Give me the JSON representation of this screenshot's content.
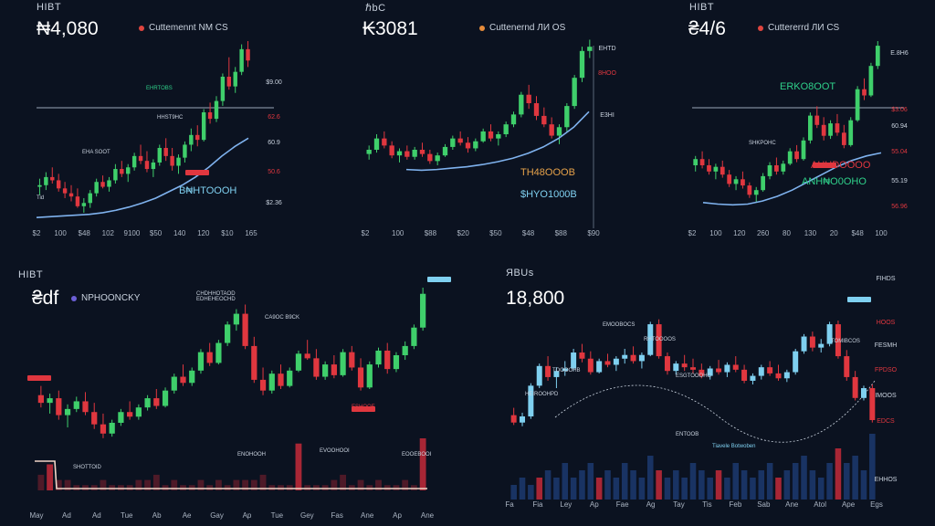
{
  "panels": [
    {
      "title": "HIBT",
      "price": "₦4,080",
      "legend": "Cuttemennt NM CS",
      "legend_color": "#e0453f"
    },
    {
      "title": "ℏbC",
      "price": "₭3081",
      "legend": "Cuttenernd ЛИ OS",
      "legend_color": "#e68b3a"
    },
    {
      "title": "HIBT",
      "price": "₴4/6",
      "legend": "Cuttererrd ЛИ CS",
      "legend_color": "#e0453f"
    },
    {
      "title": "HIBT",
      "price": "₴df",
      "legend": "NPHOONCKY",
      "legend_color": "#6b5fd6"
    },
    {
      "title": "ЯBUs",
      "price": "18,800",
      "legend": "",
      "legend_color": ""
    }
  ],
  "colors": {
    "up": "#3fcf6b",
    "down": "#e0373f",
    "ma": "#7fb2ee",
    "bg": "#0b1220",
    "blue_up": "#7fd0f0",
    "blue_bar": "#1c3a70",
    "red_bar": "#c42a3a"
  },
  "chart_data": [
    {
      "type": "candlestick",
      "title": "HIBT",
      "y_labels": [
        "$9.00",
        "62.6",
        "60.9",
        "50.6",
        "$2.36"
      ],
      "x_labels": [
        "$2",
        "100",
        "$48",
        "102",
        "9100",
        "$50",
        "140",
        "120",
        "$10",
        "165"
      ],
      "annotations": [
        "EHRTOBS",
        "HHST9HC",
        "EHA SOOT",
        "B₦HTOOOH",
        "Tid"
      ],
      "candles": [
        [
          1,
          1.5,
          0.5,
          1.1
        ],
        [
          1.1,
          1.9,
          0.8,
          1.6
        ],
        [
          1.6,
          2.2,
          1.2,
          1.4
        ],
        [
          1.4,
          1.8,
          0.7,
          0.9
        ],
        [
          0.9,
          1.3,
          0.3,
          0.6
        ],
        [
          0.6,
          1.1,
          0.1,
          0.4
        ],
        [
          0.4,
          0.9,
          -0.3,
          -0.2
        ],
        [
          -0.2,
          0.3,
          -0.6,
          0
        ],
        [
          0,
          0.8,
          -0.3,
          0.6
        ],
        [
          0.6,
          1.5,
          0.4,
          1.3
        ],
        [
          1.3,
          1.7,
          0.9,
          1
        ],
        [
          1,
          1.6,
          0.7,
          1.4
        ],
        [
          1.4,
          2.4,
          1.2,
          2.1
        ],
        [
          2.1,
          2.6,
          1.6,
          1.8
        ],
        [
          1.8,
          2.4,
          1.3,
          2.2
        ],
        [
          2.2,
          3.1,
          2,
          2.9
        ],
        [
          2.9,
          3.6,
          2.4,
          2.6
        ],
        [
          2.6,
          3.2,
          1.9,
          2.1
        ],
        [
          2.1,
          2.7,
          1.6,
          2.5
        ],
        [
          2.5,
          3.6,
          2.3,
          3.4
        ],
        [
          3.4,
          4,
          2.6,
          2.9
        ],
        [
          2.9,
          3.4,
          2,
          2.3
        ],
        [
          2.3,
          3,
          1.8,
          2.8
        ],
        [
          2.8,
          3.8,
          2.5,
          3.6
        ],
        [
          3.6,
          4.6,
          3.2,
          4.2
        ],
        [
          4.2,
          4.8,
          3.5,
          3.9
        ],
        [
          3.9,
          5.8,
          3.8,
          5.6
        ],
        [
          5.6,
          6.2,
          4.9,
          5.2
        ],
        [
          5.2,
          6.6,
          5,
          6.3
        ],
        [
          6.3,
          8,
          6,
          7.8
        ],
        [
          7.8,
          9,
          7,
          7.2
        ],
        [
          7.2,
          8.4,
          6.8,
          8.1
        ],
        [
          8.1,
          9.8,
          7.9,
          9.5
        ],
        [
          9.5,
          10,
          8.4,
          8.8
        ]
      ],
      "ma": [
        -0.9,
        -0.85,
        -0.8,
        -0.75,
        -0.7,
        -0.6,
        -0.45,
        -0.25,
        0,
        0.3,
        0.7,
        1.1,
        1.6,
        2.2,
        2.9,
        3.5,
        4
      ]
    },
    {
      "type": "candlestick",
      "title": "ℏbC",
      "y_labels": [
        "EHTD",
        "8HOO",
        "E3HI"
      ],
      "x_labels": [
        "$2",
        "100",
        "$88",
        "$20",
        "$50",
        "$48",
        "$88",
        "$90"
      ],
      "annotations": [
        "TH48OOOB",
        "$HYO1000B"
      ],
      "candles": [
        [
          2,
          2.6,
          1.6,
          2.3
        ],
        [
          2.3,
          3.4,
          2.1,
          3.1
        ],
        [
          3.1,
          3.6,
          2.4,
          2.6
        ],
        [
          2.6,
          2.9,
          1.7,
          1.9
        ],
        [
          1.9,
          2.4,
          1.4,
          2.2
        ],
        [
          2.2,
          2.6,
          1.6,
          1.8
        ],
        [
          1.8,
          2.5,
          1.6,
          2.3
        ],
        [
          2.3,
          2.8,
          1.8,
          2
        ],
        [
          2,
          2.3,
          1.3,
          1.5
        ],
        [
          1.5,
          2.1,
          1.2,
          1.9
        ],
        [
          1.9,
          2.7,
          1.8,
          2.5
        ],
        [
          2.5,
          3.3,
          2.3,
          3.1
        ],
        [
          3.1,
          3.6,
          2.6,
          2.8
        ],
        [
          2.8,
          3.2,
          2.1,
          2.4
        ],
        [
          2.4,
          3.1,
          2.2,
          2.9
        ],
        [
          2.9,
          3.8,
          2.8,
          3.6
        ],
        [
          3.6,
          4.1,
          2.9,
          3.1
        ],
        [
          3.1,
          3.6,
          2.6,
          3.4
        ],
        [
          3.4,
          4.3,
          3.2,
          4.1
        ],
        [
          4.1,
          5,
          3.9,
          4.8
        ],
        [
          4.8,
          6.4,
          4.6,
          6.2
        ],
        [
          6.2,
          6.9,
          5.2,
          5.6
        ],
        [
          5.6,
          6.1,
          4.4,
          4.7
        ],
        [
          4.7,
          5.3,
          3.9,
          4.1
        ],
        [
          4.1,
          4.6,
          3.1,
          3.3
        ],
        [
          3.3,
          4.1,
          2.7,
          3.9
        ],
        [
          3.9,
          5.6,
          3.6,
          5.4
        ],
        [
          5.4,
          7.6,
          5.2,
          7.4
        ],
        [
          7.4,
          9.6,
          7.1,
          9.3
        ],
        [
          9.3,
          10.1,
          8.8,
          9.6
        ]
      ],
      "ma": [
        0.9,
        0.85,
        0.9,
        1,
        1.1,
        1.25,
        1.45,
        1.7,
        2.05,
        2.5,
        3.1,
        3.9,
        5
      ]
    },
    {
      "type": "candlestick",
      "title": "HIBT",
      "y_labels": [
        "E.8H6",
        "$3.06",
        "60.94",
        "55.04",
        "55.19",
        "56.96"
      ],
      "x_labels": [
        "$2",
        "100",
        "120",
        "260",
        "80",
        "130",
        "20",
        "$48",
        "100"
      ],
      "annotations": [
        "ERKO8OOT",
        "SHKPOHC",
        "AHHDOOOO",
        "ANH₦O0OHO"
      ],
      "candles": [
        [
          2,
          2.6,
          1.6,
          2.4
        ],
        [
          2.4,
          2.9,
          1.8,
          2
        ],
        [
          2,
          2.4,
          1.4,
          1.6
        ],
        [
          1.6,
          2.1,
          1.1,
          1.9
        ],
        [
          1.9,
          2.3,
          1.2,
          1.4
        ],
        [
          1.4,
          1.7,
          0.6,
          0.8
        ],
        [
          0.8,
          1.3,
          0.4,
          1.1
        ],
        [
          1.1,
          1.6,
          0.5,
          0.7
        ],
        [
          0.7,
          0.9,
          -0.1,
          0.1
        ],
        [
          0.1,
          0.6,
          -0.4,
          0.4
        ],
        [
          0.4,
          1.5,
          0.3,
          1.3
        ],
        [
          1.3,
          2.2,
          1.1,
          2
        ],
        [
          2,
          2.5,
          1.4,
          1.6
        ],
        [
          1.6,
          2.3,
          1.4,
          2.1
        ],
        [
          2.1,
          3.1,
          2,
          2.9
        ],
        [
          2.9,
          3.3,
          2.2,
          2.4
        ],
        [
          2.4,
          3.8,
          2.3,
          3.6
        ],
        [
          3.6,
          5.4,
          3.4,
          5.2
        ],
        [
          5.2,
          5.8,
          4.4,
          4.6
        ],
        [
          4.6,
          5.1,
          3.6,
          3.9
        ],
        [
          3.9,
          4.9,
          3.7,
          4.7
        ],
        [
          4.7,
          5.3,
          3.9,
          4.1
        ],
        [
          4.1,
          4.6,
          3.1,
          3.3
        ],
        [
          3.3,
          5.1,
          3.2,
          4.9
        ],
        [
          4.9,
          7.1,
          4.8,
          6.9
        ],
        [
          6.9,
          7.6,
          6.2,
          6.5
        ],
        [
          6.5,
          8.6,
          6.4,
          8.4
        ],
        [
          8.4,
          10,
          8.2,
          9.7
        ]
      ],
      "ma": [
        -0.4,
        -0.5,
        -0.55,
        -0.5,
        -0.3,
        0,
        0.4,
        0.9,
        1.4,
        1.9,
        2.3,
        2.6,
        2.8
      ]
    },
    {
      "type": "candlestick_volume",
      "title": "HIBT",
      "y_labels": [],
      "x_labels": [
        "May",
        "Ad",
        "Ad",
        "Tue",
        "Ab",
        "Ae",
        "Gay",
        "Ap",
        "Tue",
        "Gey",
        "Fas",
        "Ane",
        "Ap",
        "Ane"
      ],
      "annotations": [
        "CA9OC B9CK",
        "EDHEHEOCHD",
        "CHDHHOTAOD",
        "ESHOOE",
        "ENOHOOH",
        "EVOOHOOI",
        "EOOEBOOI",
        "SHOTTOID"
      ],
      "candles": [
        [
          3,
          3.6,
          2.2,
          2.5
        ],
        [
          2.5,
          3.1,
          1.8,
          2.8
        ],
        [
          2.8,
          3.3,
          1.4,
          1.7
        ],
        [
          1.7,
          2.4,
          0.9,
          2.1
        ],
        [
          2.1,
          2.9,
          1.9,
          2.6
        ],
        [
          2.6,
          3.2,
          1.7,
          1.9
        ],
        [
          1.9,
          2.5,
          0.8,
          1.1
        ],
        [
          1.1,
          1.8,
          0.2,
          0.5
        ],
        [
          0.5,
          1.4,
          0.3,
          1.2
        ],
        [
          1.2,
          2.1,
          1,
          1.9
        ],
        [
          1.9,
          2.6,
          1.4,
          1.6
        ],
        [
          1.6,
          2.4,
          1.4,
          2.2
        ],
        [
          2.2,
          3,
          2,
          2.8
        ],
        [
          2.8,
          3.4,
          2.1,
          2.3
        ],
        [
          2.3,
          3.5,
          2.2,
          3.3
        ],
        [
          3.3,
          4.4,
          3.1,
          4.2
        ],
        [
          4.2,
          5,
          3.6,
          3.8
        ],
        [
          3.8,
          4.8,
          3.6,
          4.6
        ],
        [
          4.6,
          6,
          4.4,
          5.8
        ],
        [
          5.8,
          6.4,
          4.9,
          5.1
        ],
        [
          5.1,
          6.6,
          5,
          6.4
        ],
        [
          6.4,
          7.8,
          6.2,
          7.6
        ],
        [
          7.6,
          8.6,
          7.2,
          8.3
        ],
        [
          8.3,
          8.9,
          6,
          6.2
        ],
        [
          6.2,
          6.8,
          3.8,
          4
        ],
        [
          4,
          4.8,
          3,
          3.3
        ],
        [
          3.3,
          4.6,
          3.1,
          4.4
        ],
        [
          4.4,
          5,
          3.4,
          3.6
        ],
        [
          3.6,
          4.8,
          3.5,
          4.6
        ],
        [
          4.6,
          5.9,
          4.5,
          5.7
        ],
        [
          5.7,
          6.6,
          5.3,
          5.4
        ],
        [
          5.4,
          6,
          4,
          4.2
        ],
        [
          4.2,
          5.2,
          4,
          5
        ],
        [
          5,
          5.6,
          4.1,
          4.3
        ],
        [
          4.3,
          6,
          4.2,
          5.8
        ],
        [
          5.8,
          6.2,
          4.6,
          4.8
        ],
        [
          4.8,
          5.4,
          3.3,
          3.5
        ],
        [
          3.5,
          5.2,
          3.4,
          5
        ],
        [
          5,
          6.1,
          4.8,
          5.9
        ],
        [
          5.9,
          6.4,
          4.4,
          4.7
        ],
        [
          4.7,
          5.8,
          4.5,
          5.6
        ],
        [
          5.6,
          6.5,
          5.3,
          6.2
        ],
        [
          6.2,
          7.6,
          6,
          7.4
        ],
        [
          7.4,
          10,
          7.2,
          9.6
        ]
      ],
      "volume": [
        3,
        5,
        2,
        2,
        1,
        1,
        1,
        2,
        1,
        1,
        1,
        2,
        2,
        3,
        1,
        2,
        1,
        1,
        2,
        1,
        2,
        1,
        2,
        2,
        2,
        3,
        1,
        1,
        1,
        9,
        1,
        1,
        1,
        2,
        3,
        1,
        2,
        1,
        2,
        1,
        1,
        2,
        1,
        10
      ]
    },
    {
      "type": "candlestick_volume",
      "title": "ЯBUs",
      "y_labels": [
        "FIHDS",
        "HOOS",
        "FESMH",
        "FPDSO",
        "IMOOS",
        "EDCS",
        "EHHOS"
      ],
      "x_labels": [
        "Fa",
        "Fia",
        "Ley",
        "Ap",
        "Fae",
        "Ag",
        "Tay",
        "Tis",
        "Feb",
        "Sab",
        "Ane",
        "Atol",
        "Ape",
        "Egs"
      ],
      "annotations": [
        "EMOOBOCS",
        "RHTOOOOS",
        "TOOOOHB",
        "HEIROOHPD",
        "ESGTOOOHC",
        "ENTOOB",
        "TOMIBCOS",
        "Tiavele Botwoben"
      ],
      "candles": [
        [
          2,
          2.6,
          1.2,
          1.4
        ],
        [
          1.4,
          2.2,
          1.1,
          1.9
        ],
        [
          1.9,
          4.6,
          1.7,
          4.4
        ],
        [
          4.4,
          6.2,
          4.2,
          6
        ],
        [
          6,
          6.8,
          4.8,
          5.1
        ],
        [
          5.1,
          5.9,
          4.2,
          5.6
        ],
        [
          5.6,
          6.4,
          5.2,
          5.8
        ],
        [
          5.8,
          7.4,
          5.6,
          7.1
        ],
        [
          7.1,
          7.8,
          6.3,
          6.6
        ],
        [
          6.6,
          7.2,
          5.3,
          5.5
        ],
        [
          5.5,
          6.6,
          5.4,
          6.4
        ],
        [
          6.4,
          7,
          5.9,
          6.1
        ],
        [
          6.1,
          6.8,
          5.6,
          6.6
        ],
        [
          6.6,
          7.4,
          6.2,
          6.9
        ],
        [
          6.9,
          7.6,
          6.2,
          6.4
        ],
        [
          6.4,
          7.1,
          5.8,
          6.9
        ],
        [
          6.9,
          9.6,
          6.8,
          9.4
        ],
        [
          9.4,
          9.8,
          6.6,
          6.8
        ],
        [
          6.8,
          7.1,
          5.3,
          5.6
        ],
        [
          5.6,
          6.4,
          5.3,
          6.2
        ],
        [
          6.2,
          6.9,
          5.6,
          5.9
        ],
        [
          5.9,
          6.6,
          5.4,
          5.7
        ],
        [
          5.7,
          6.2,
          5,
          5.2
        ],
        [
          5.2,
          6,
          4.9,
          5.8
        ],
        [
          5.8,
          6.5,
          5.3,
          5.5
        ],
        [
          5.5,
          6.3,
          5.1,
          6.1
        ],
        [
          6.1,
          6.8,
          5.5,
          5.7
        ],
        [
          5.7,
          6.1,
          4.6,
          4.8
        ],
        [
          4.8,
          5.4,
          4.5,
          5.2
        ],
        [
          5.2,
          6.1,
          4.9,
          5.9
        ],
        [
          5.9,
          6.4,
          5.2,
          5.4
        ],
        [
          5.4,
          6.1,
          4.8,
          5
        ],
        [
          5,
          5.7,
          4.7,
          5.5
        ],
        [
          5.5,
          7.4,
          5.3,
          7.2
        ],
        [
          7.2,
          8.6,
          7,
          8.4
        ],
        [
          8.4,
          8.8,
          7.2,
          7.5
        ],
        [
          7.5,
          8.2,
          7.1,
          7.8
        ],
        [
          7.8,
          9.6,
          7.6,
          9.4
        ],
        [
          9.4,
          9.7,
          6.6,
          6.8
        ],
        [
          6.8,
          7.3,
          4.8,
          5.1
        ],
        [
          5.1,
          5.6,
          3.2,
          3.4
        ],
        [
          3.4,
          4.4,
          3.2,
          4.2
        ],
        [
          4.2,
          4.5,
          1.4,
          1.6
        ]
      ],
      "volume": [
        2,
        3,
        2,
        3,
        4,
        3,
        5,
        3,
        4,
        5,
        3,
        4,
        3,
        5,
        4,
        3,
        6,
        4,
        3,
        4,
        3,
        5,
        4,
        3,
        4,
        3,
        5,
        4,
        3,
        4,
        5,
        3,
        4,
        5,
        6,
        4,
        3,
        5,
        7,
        5,
        6,
        4,
        9
      ]
    }
  ]
}
